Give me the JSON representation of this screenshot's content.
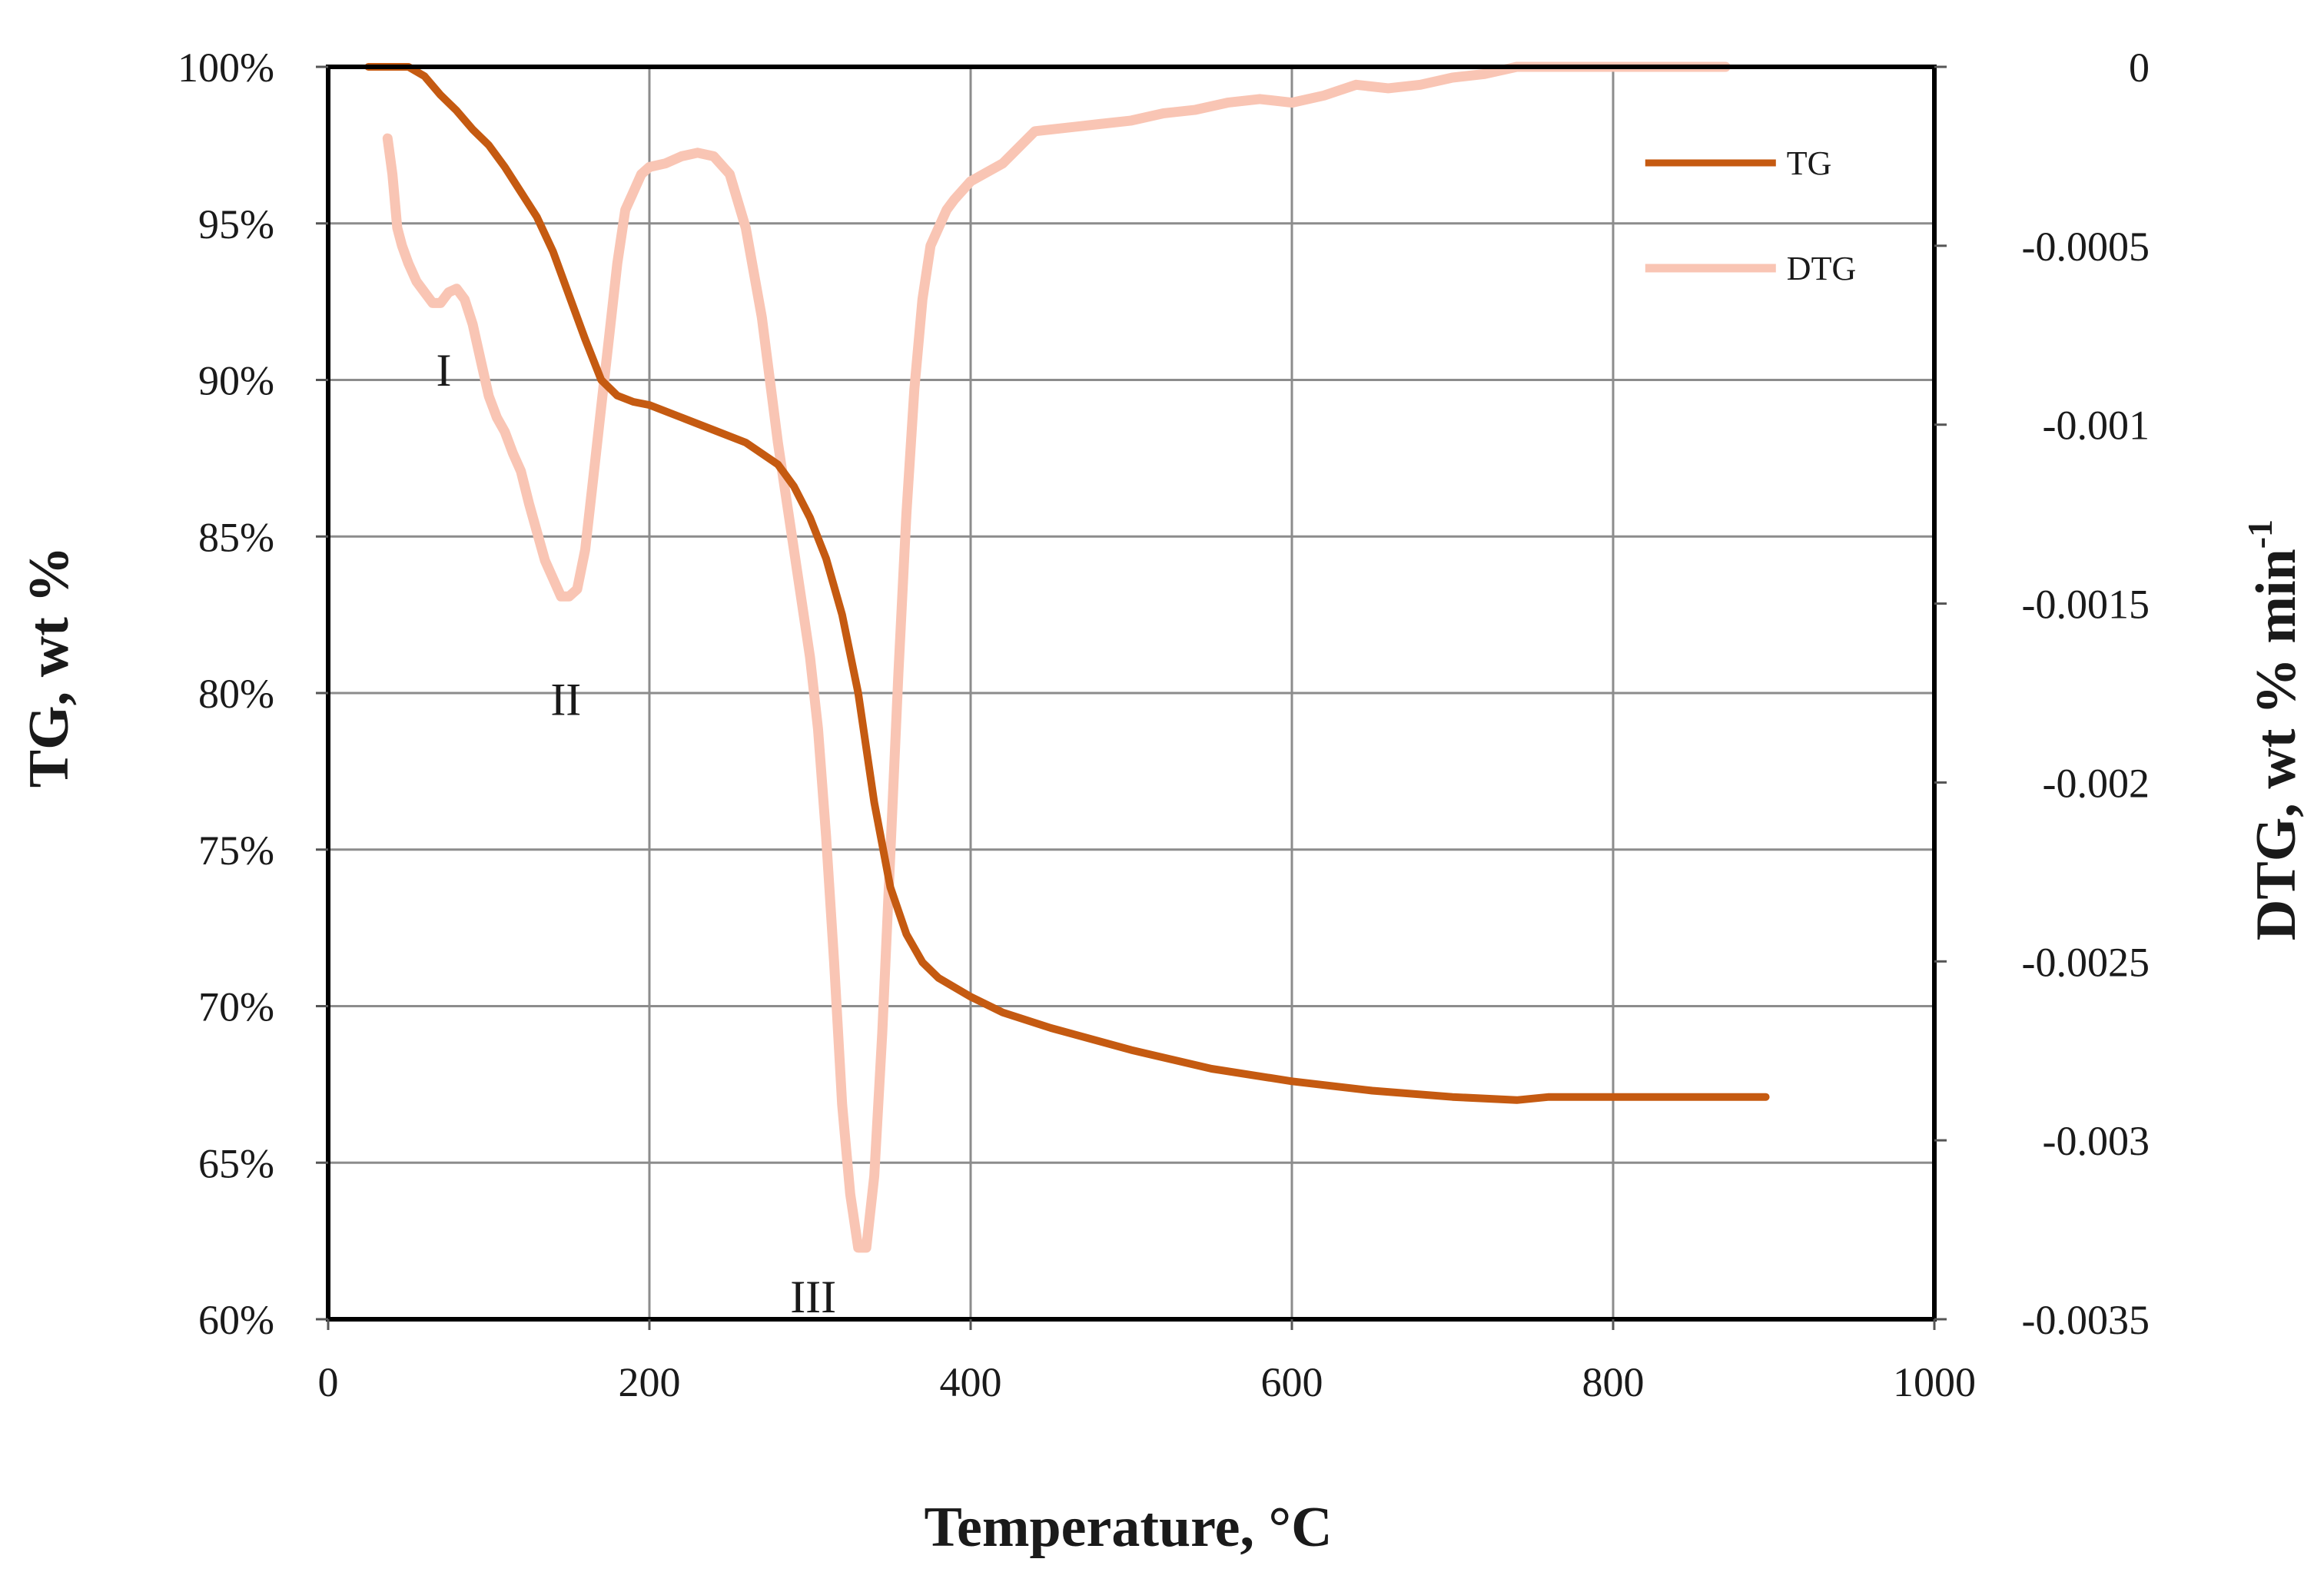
{
  "chart_data": {
    "type": "line",
    "xlabel": "Temperature, °C",
    "ylabel_left": "TG, wt %",
    "ylabel_right": "DTG, wt % min",
    "ylabel_right_superscript": "-1",
    "xlim": [
      0,
      1000
    ],
    "ylim_left": [
      60,
      100
    ],
    "ylim_right": [
      -0.0035,
      0
    ],
    "x_ticks": [
      "0",
      "200",
      "400",
      "600",
      "800",
      "1000"
    ],
    "y_left_ticks": [
      "60%",
      "65%",
      "70%",
      "75%",
      "80%",
      "85%",
      "90%",
      "95%",
      "100%"
    ],
    "y_right_ticks": [
      "-0.0035",
      "-0.003",
      "-0.0025",
      "-0.002",
      "-0.0015",
      "-0.001",
      "-0.0005",
      "0"
    ],
    "grid": true,
    "legend_position": "top-right",
    "series": [
      {
        "name": "TG",
        "axis": "left",
        "color": "#C55A11",
        "x": [
          25,
          35,
          50,
          60,
          70,
          80,
          90,
          100,
          110,
          120,
          130,
          140,
          150,
          160,
          170,
          180,
          190,
          200,
          220,
          240,
          260,
          280,
          290,
          300,
          310,
          320,
          330,
          340,
          350,
          360,
          370,
          380,
          400,
          420,
          450,
          500,
          550,
          600,
          650,
          700,
          740,
          760,
          780,
          800,
          850,
          895
        ],
        "values": [
          100,
          100,
          100,
          99.7,
          99.1,
          98.6,
          98.0,
          97.5,
          96.8,
          96.0,
          95.2,
          94.1,
          92.7,
          91.3,
          90.0,
          89.5,
          89.3,
          89.2,
          88.8,
          88.4,
          88.0,
          87.3,
          86.6,
          85.6,
          84.3,
          82.5,
          80.0,
          76.5,
          73.8,
          72.3,
          71.4,
          70.9,
          70.3,
          69.8,
          69.3,
          68.6,
          68.0,
          67.6,
          67.3,
          67.1,
          67.0,
          67.1,
          67.1,
          67.1,
          67.1,
          67.1
        ]
      },
      {
        "name": "DTG",
        "axis": "right",
        "color": "#F9C5B4",
        "x": [
          37,
          40,
          43,
          46,
          50,
          55,
          60,
          65,
          70,
          75,
          80,
          85,
          90,
          95,
          100,
          105,
          110,
          115,
          120,
          125,
          130,
          135,
          140,
          145,
          150,
          155,
          160,
          165,
          170,
          175,
          180,
          185,
          190,
          195,
          200,
          210,
          220,
          230,
          240,
          250,
          260,
          270,
          280,
          290,
          300,
          305,
          310,
          315,
          320,
          325,
          330,
          335,
          340,
          345,
          350,
          355,
          360,
          365,
          370,
          375,
          380,
          385,
          390,
          400,
          420,
          440,
          460,
          480,
          500,
          520,
          540,
          560,
          580,
          600,
          620,
          640,
          660,
          680,
          700,
          720,
          740,
          760,
          780,
          800,
          850,
          870
        ],
        "values": [
          -0.0002,
          -0.0003,
          -0.00045,
          -0.0005,
          -0.00055,
          -0.0006,
          -0.00063,
          -0.00066,
          -0.00066,
          -0.00063,
          -0.00062,
          -0.00065,
          -0.00072,
          -0.00082,
          -0.00092,
          -0.00098,
          -0.00102,
          -0.00108,
          -0.00113,
          -0.00122,
          -0.0013,
          -0.00138,
          -0.00143,
          -0.00148,
          -0.00148,
          -0.00146,
          -0.00135,
          -0.00115,
          -0.00095,
          -0.00075,
          -0.00055,
          -0.0004,
          -0.00035,
          -0.0003,
          -0.00028,
          -0.00027,
          -0.00025,
          -0.00024,
          -0.00025,
          -0.0003,
          -0.00045,
          -0.0007,
          -0.00105,
          -0.00135,
          -0.00165,
          -0.00185,
          -0.00215,
          -0.0025,
          -0.0029,
          -0.00315,
          -0.0033,
          -0.0033,
          -0.0031,
          -0.0027,
          -0.0022,
          -0.0017,
          -0.00125,
          -0.0009,
          -0.00065,
          -0.0005,
          -0.00045,
          -0.0004,
          -0.00037,
          -0.00032,
          -0.00027,
          -0.00018,
          -0.00017,
          -0.00016,
          -0.00015,
          -0.00013,
          -0.00012,
          -0.0001,
          -9e-05,
          -0.0001,
          -8e-05,
          -5e-05,
          -6e-05,
          -5e-05,
          -3e-05,
          -2e-05,
          0,
          0,
          0,
          0,
          0,
          0
        ]
      }
    ],
    "annotations": [
      {
        "text": "I",
        "x": 72,
        "axis": "right",
        "y": -0.00073
      },
      {
        "text": "II",
        "x": 148,
        "axis": "right",
        "y": -0.00165
      },
      {
        "text": "III",
        "x": 302,
        "axis": "right",
        "y": -0.00332
      }
    ]
  }
}
